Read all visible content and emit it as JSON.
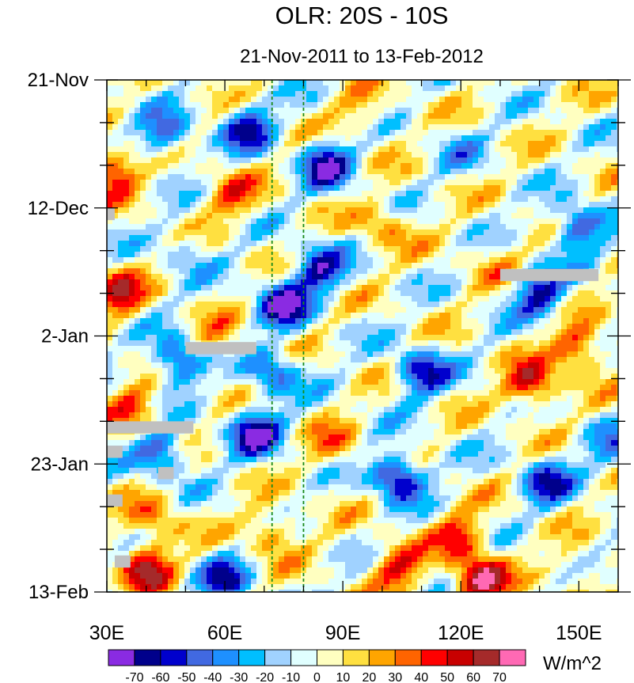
{
  "chart_data": {
    "type": "heatmap",
    "title": "OLR: 20S - 10S",
    "subtitle": "21-Nov-2011 to 13-Feb-2012",
    "x_tick_labels": [
      "30E",
      "60E",
      "90E",
      "120E",
      "150E"
    ],
    "x_tick_values": [
      30,
      60,
      90,
      120,
      150
    ],
    "xlim": [
      30,
      160
    ],
    "y_tick_labels": [
      "21-Nov",
      "12-Dec",
      "2-Jan",
      "23-Jan",
      "13-Feb"
    ],
    "y_tick_values": [
      0,
      21,
      42,
      63,
      84
    ],
    "ylim": [
      0,
      84
    ],
    "reference_lines_lon": [
      72,
      80
    ],
    "colorbar": {
      "unit": "W/m^2",
      "levels": [
        "-70",
        "-60",
        "-50",
        "-40",
        "-30",
        "-20",
        "-10",
        "0",
        "10",
        "20",
        "30",
        "40",
        "50",
        "60",
        "70"
      ],
      "colors": [
        "#8a2be2",
        "#00008b",
        "#0000cd",
        "#4169e1",
        "#1e90ff",
        "#00bfff",
        "#a0d2ff",
        "#e0ffff",
        "#ffffc0",
        "#ffe040",
        "#ffa500",
        "#ff6400",
        "#ff0000",
        "#c80000",
        "#a52a2a",
        "#ff69b4"
      ]
    },
    "anomaly_blobs": [
      {
        "lon": 31,
        "day": 15,
        "value": 55
      },
      {
        "lon": 33,
        "day": 35,
        "value": 50
      },
      {
        "lon": 37,
        "day": 54,
        "value": 38
      },
      {
        "lon": 42,
        "day": 72,
        "value": 30
      },
      {
        "lon": 40,
        "day": 80,
        "value": 60
      },
      {
        "lon": 45,
        "day": 9,
        "value": -45
      },
      {
        "lon": 48,
        "day": 46,
        "value": -58
      },
      {
        "lon": 44,
        "day": 61,
        "value": -52
      },
      {
        "lon": 50,
        "day": 28,
        "value": -20
      },
      {
        "lon": 58,
        "day": 43,
        "value": 25
      },
      {
        "lon": 62,
        "day": 19,
        "value": 35
      },
      {
        "lon": 66,
        "day": 8,
        "value": -55
      },
      {
        "lon": 72,
        "day": 48,
        "value": -45
      },
      {
        "lon": 68,
        "day": 58,
        "value": -66
      },
      {
        "lon": 60,
        "day": 82,
        "value": -50
      },
      {
        "lon": 75,
        "day": 37,
        "value": -68
      },
      {
        "lon": 72,
        "day": 74,
        "value": 35
      },
      {
        "lon": 84,
        "day": 31,
        "value": -60
      },
      {
        "lon": 86,
        "day": 14,
        "value": -62
      },
      {
        "lon": 88,
        "day": 60,
        "value": 25
      },
      {
        "lon": 95,
        "day": 5,
        "value": 22
      },
      {
        "lon": 100,
        "day": 24,
        "value": 28
      },
      {
        "lon": 104,
        "day": 65,
        "value": -72
      },
      {
        "lon": 110,
        "day": 48,
        "value": -60
      },
      {
        "lon": 104,
        "day": 80,
        "value": 45
      },
      {
        "lon": 120,
        "day": 12,
        "value": -18
      },
      {
        "lon": 128,
        "day": 30,
        "value": 15
      },
      {
        "lon": 138,
        "day": 50,
        "value": 55
      },
      {
        "lon": 150,
        "day": 44,
        "value": 50
      },
      {
        "lon": 140,
        "day": 35,
        "value": -58
      },
      {
        "lon": 150,
        "day": 24,
        "value": -55
      },
      {
        "lon": 142,
        "day": 66,
        "value": -50
      },
      {
        "lon": 125,
        "day": 82,
        "value": 72
      },
      {
        "lon": 120,
        "day": 75,
        "value": 42
      },
      {
        "lon": 150,
        "day": 80,
        "value": 18
      },
      {
        "lon": 158,
        "day": 60,
        "value": -30
      }
    ],
    "missing_data_bars": [
      {
        "lon0": 30,
        "lon1": 32,
        "day0": 21,
        "day1": 23
      },
      {
        "lon0": 50,
        "lon1": 68,
        "day0": 43,
        "day1": 45
      },
      {
        "lon0": 30,
        "lon1": 52,
        "day0": 56,
        "day1": 58
      },
      {
        "lon0": 30,
        "lon1": 34,
        "day0": 60,
        "day1": 62
      },
      {
        "lon0": 43,
        "lon1": 47,
        "day0": 63.5,
        "day1": 65.5
      },
      {
        "lon0": 30,
        "lon1": 34,
        "day0": 68,
        "day1": 70
      },
      {
        "lon0": 32,
        "lon1": 36,
        "day0": 78,
        "day1": 80
      },
      {
        "lon0": 130,
        "lon1": 155,
        "day0": 31,
        "day1": 33
      }
    ]
  }
}
